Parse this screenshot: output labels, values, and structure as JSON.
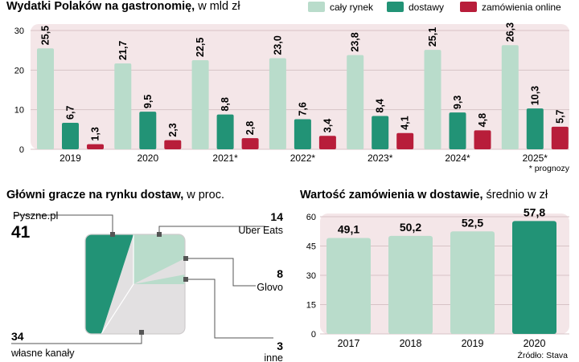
{
  "colors": {
    "total": "#b9dccb",
    "delivery": "#229376",
    "online": "#b81d3a",
    "plot_bg": "#f4e6e8",
    "pie_grey": "#e2e0e1",
    "text": "#1d1d1b"
  },
  "chart_data": [
    {
      "type": "bar",
      "title": "Wydatki Polaków na gastronomię,",
      "subtitle": "w mld zł",
      "categories": [
        "2019",
        "2020",
        "2021*",
        "2022*",
        "2023*",
        "2024*",
        "2025*"
      ],
      "series": [
        {
          "name": "cały rynek",
          "values": [
            25.5,
            21.7,
            22.5,
            23.0,
            23.8,
            25.1,
            26.3
          ],
          "labels": [
            "25,5",
            "21,7",
            "22,5",
            "23,0",
            "23,8",
            "25,1",
            "26,3"
          ]
        },
        {
          "name": "dostawy",
          "values": [
            6.7,
            9.5,
            8.8,
            7.6,
            8.4,
            9.3,
            10.3
          ],
          "labels": [
            "6,7",
            "9,5",
            "8,8",
            "7,6",
            "8,4",
            "9,3",
            "10,3"
          ]
        },
        {
          "name": "zamówienia online",
          "values": [
            1.3,
            2.3,
            2.8,
            3.4,
            4.1,
            4.8,
            5.7
          ],
          "labels": [
            "1,3",
            "2,3",
            "2,8",
            "3,4",
            "4,1",
            "4,8",
            "5,7"
          ]
        }
      ],
      "yticks": [
        0,
        10,
        20,
        30
      ],
      "ylim": [
        0,
        30
      ],
      "footnote": "* prognozy"
    },
    {
      "type": "pie",
      "title": "Główni gracze na rynku dostaw,",
      "subtitle": "w proc.",
      "slices": [
        {
          "name": "Pyszne.pl",
          "value": 41
        },
        {
          "name": "Uber Eats",
          "value": 14
        },
        {
          "name": "Glovo",
          "value": 8
        },
        {
          "name": "inne",
          "value": 3
        },
        {
          "name": "własne kanały",
          "value": 34
        }
      ]
    },
    {
      "type": "bar",
      "title": "Wartość zamówienia w dostawie,",
      "subtitle": "średnio w zł",
      "categories": [
        "2017",
        "2018",
        "2019",
        "2020"
      ],
      "values": [
        49.1,
        50.2,
        52.5,
        57.8
      ],
      "labels": [
        "49,1",
        "50,2",
        "52,5",
        "57,8"
      ],
      "yticks": [
        0,
        15,
        30,
        45,
        60
      ],
      "ylim": [
        0,
        60
      ],
      "source": "Źródło: Stava"
    }
  ]
}
